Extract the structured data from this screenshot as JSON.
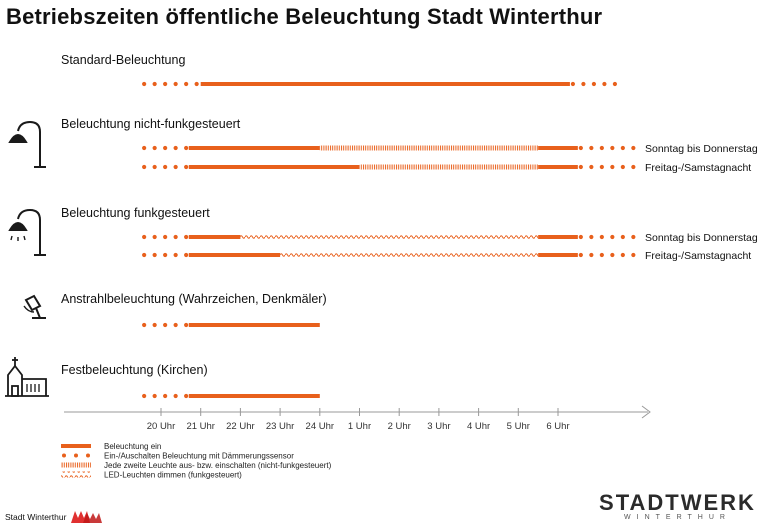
{
  "title": "Betriebszeiten öffentliche Beleuchtung Stadt Winterthur",
  "colors": {
    "accent": "#e8601c",
    "hatch": "#f0a070",
    "text": "#111111",
    "axis": "#999999"
  },
  "rows": [
    {
      "label": "Standard-Beleuchtung",
      "icon": "none",
      "lines": [
        {
          "segments": [
            {
              "style": "dots",
              "from": 19.5,
              "to": 21.0
            },
            {
              "style": "solid",
              "from": 21.0,
              "to": 30.3
            },
            {
              "style": "dots",
              "from": 30.3,
              "to": 31.5
            }
          ],
          "side_label": ""
        }
      ]
    },
    {
      "label": "Beleuchtung nicht-funkgesteuert",
      "icon": "street-lamp-icon",
      "lines": [
        {
          "segments": [
            {
              "style": "dots",
              "from": 19.5,
              "to": 20.7
            },
            {
              "style": "solid",
              "from": 20.7,
              "to": 24.0
            },
            {
              "style": "hatched",
              "from": 24.0,
              "to": 29.5
            },
            {
              "style": "solid",
              "from": 29.5,
              "to": 30.5
            },
            {
              "style": "dots",
              "from": 30.5,
              "to": 32.0
            }
          ],
          "side_label": "Sonntag bis Donnerstag"
        },
        {
          "segments": [
            {
              "style": "dots",
              "from": 19.5,
              "to": 20.7
            },
            {
              "style": "solid",
              "from": 20.7,
              "to": 25.0
            },
            {
              "style": "hatched",
              "from": 25.0,
              "to": 29.5
            },
            {
              "style": "solid",
              "from": 29.5,
              "to": 30.5
            },
            {
              "style": "dots",
              "from": 30.5,
              "to": 32.0
            }
          ],
          "side_label": "Freitag-/Samstagnacht"
        }
      ]
    },
    {
      "label": "Beleuchtung funkgesteuert",
      "icon": "radio-lamp-icon",
      "lines": [
        {
          "segments": [
            {
              "style": "dots",
              "from": 19.5,
              "to": 20.7
            },
            {
              "style": "solid",
              "from": 20.7,
              "to": 22.0
            },
            {
              "style": "wave",
              "from": 22.0,
              "to": 29.5
            },
            {
              "style": "solid",
              "from": 29.5,
              "to": 30.5
            },
            {
              "style": "dots",
              "from": 30.5,
              "to": 32.0
            }
          ],
          "side_label": "Sonntag bis Donnerstag"
        },
        {
          "segments": [
            {
              "style": "dots",
              "from": 19.5,
              "to": 20.7
            },
            {
              "style": "solid",
              "from": 20.7,
              "to": 23.0
            },
            {
              "style": "wave",
              "from": 23.0,
              "to": 29.5
            },
            {
              "style": "solid",
              "from": 29.5,
              "to": 30.5
            },
            {
              "style": "dots",
              "from": 30.5,
              "to": 32.0
            }
          ],
          "side_label": "Freitag-/Samstagnacht"
        }
      ]
    },
    {
      "label": "Anstrahlbeleuchtung (Wahrzeichen, Denkmäler)",
      "icon": "spotlight-icon",
      "lines": [
        {
          "segments": [
            {
              "style": "dots",
              "from": 19.5,
              "to": 20.7
            },
            {
              "style": "solid",
              "from": 20.7,
              "to": 24.0
            }
          ],
          "side_label": ""
        }
      ]
    },
    {
      "label": "Festbeleuchtung (Kirchen)",
      "icon": "church-icon",
      "lines": [
        {
          "segments": [
            {
              "style": "dots",
              "from": 19.5,
              "to": 20.7
            },
            {
              "style": "solid",
              "from": 20.7,
              "to": 24.0
            }
          ],
          "side_label": ""
        }
      ]
    }
  ],
  "axis": {
    "ticks": [
      {
        "hour": 20,
        "label": "20 Uhr"
      },
      {
        "hour": 21,
        "label": "21 Uhr"
      },
      {
        "hour": 22,
        "label": "22 Uhr"
      },
      {
        "hour": 23,
        "label": "23 Uhr"
      },
      {
        "hour": 24,
        "label": "24 Uhr"
      },
      {
        "hour": 25,
        "label": "1 Uhr"
      },
      {
        "hour": 26,
        "label": "2 Uhr"
      },
      {
        "hour": 27,
        "label": "3 Uhr"
      },
      {
        "hour": 28,
        "label": "4 Uhr"
      },
      {
        "hour": 29,
        "label": "5 Uhr"
      },
      {
        "hour": 30,
        "label": "6 Uhr"
      }
    ]
  },
  "legend": [
    {
      "style": "solid",
      "label": "Beleuchtung ein"
    },
    {
      "style": "dots",
      "label": "Ein-/Auschalten Beleuchtung mit Dämmerungssensor"
    },
    {
      "style": "hatched",
      "label": "Jede zweite Leuchte aus- bzw. einschalten (nicht-funkgesteuert)"
    },
    {
      "style": "wave",
      "label": "LED-Leuchten dimmen (funkgesteuert)"
    }
  ],
  "footer": {
    "left_text": "Stadt Winterthur",
    "brand": "STADTWERK",
    "brand_sub": "WINTERTHUR"
  }
}
